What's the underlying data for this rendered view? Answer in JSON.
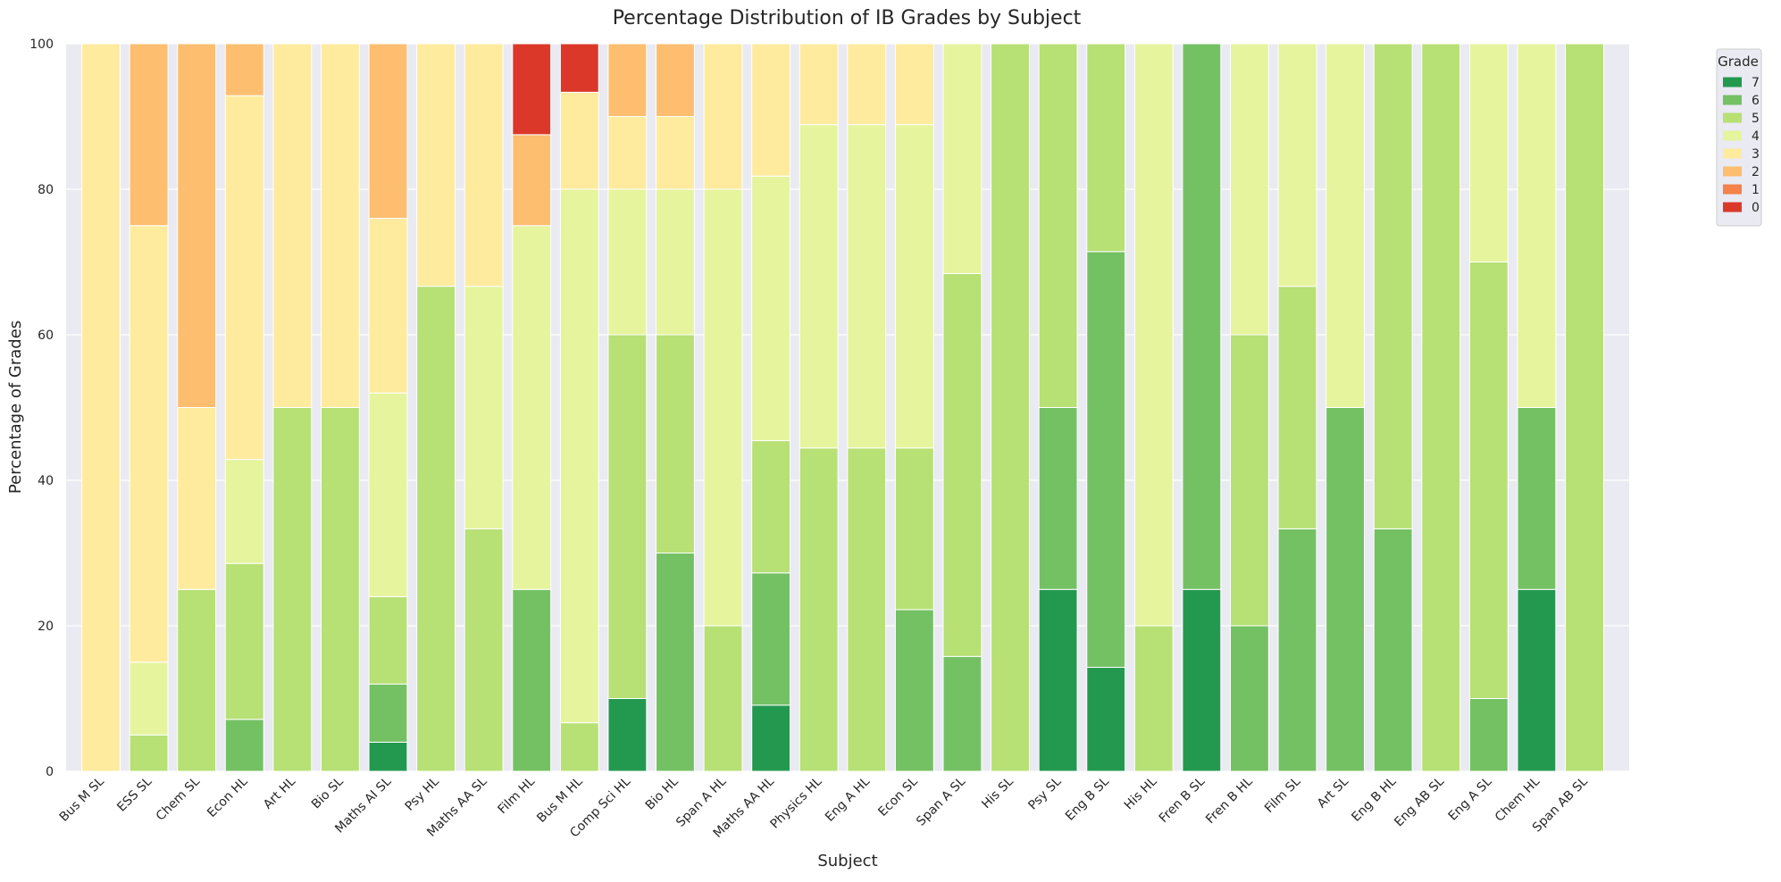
{
  "chart_data": {
    "type": "bar",
    "stacked": true,
    "title": "Percentage Distribution of IB Grades by Subject",
    "xlabel": "Subject",
    "ylabel": "Percentage of Grades",
    "ylim": [
      0,
      100
    ],
    "yticks": [
      0,
      20,
      40,
      60,
      80,
      100
    ],
    "grid": true,
    "legend_title": "Grade",
    "legend_placement": "outside top-right",
    "categories": [
      "Bus M SL",
      "ESS SL",
      "Chem SL",
      "Econ HL",
      "Art HL",
      "Bio SL",
      "Maths AI SL",
      "Psy HL",
      "Maths AA SL",
      "Film HL",
      "Bus M HL",
      "Comp Sci HL",
      "Bio HL",
      "Span A HL",
      "Maths AA HL",
      "Physics HL",
      "Eng A HL",
      "Econ SL",
      "Span A SL",
      "His SL",
      "Psy SL",
      "Eng B SL",
      "His HL",
      "Fren B SL",
      "Fren B HL",
      "Film SL",
      "Art SL",
      "Eng B HL",
      "Eng AB SL",
      "Eng A SL",
      "Chem HL",
      "Span AB SL"
    ],
    "series": [
      {
        "name": "7",
        "color": "#23994f",
        "values": [
          0,
          0,
          0,
          0,
          0,
          0,
          4,
          0,
          0,
          0,
          0,
          10,
          0,
          0,
          9.09,
          0,
          0,
          0,
          0,
          0,
          25,
          14.29,
          0,
          25,
          0,
          0,
          0,
          0,
          0,
          0,
          25,
          0
        ]
      },
      {
        "name": "6",
        "color": "#74c164",
        "values": [
          0,
          0,
          0,
          7.14,
          0,
          0,
          8,
          0,
          0,
          25,
          0,
          0,
          30,
          0,
          18.18,
          0,
          0,
          22.22,
          15.79,
          0,
          25,
          57.14,
          0,
          75,
          20,
          33.33,
          50,
          33.33,
          0,
          10,
          25,
          0
        ]
      },
      {
        "name": "5",
        "color": "#b7e075",
        "values": [
          0,
          5,
          25,
          21.43,
          50,
          50,
          12,
          66.67,
          33.33,
          0,
          6.67,
          50,
          30,
          20,
          18.18,
          44.44,
          44.44,
          22.22,
          52.63,
          100,
          50,
          28.57,
          20,
          0,
          40,
          33.33,
          0,
          66.67,
          100,
          60,
          0,
          100
        ]
      },
      {
        "name": "4",
        "color": "#e6f49d",
        "values": [
          0,
          10,
          0,
          14.29,
          0,
          0,
          28,
          0,
          33.33,
          50,
          73.33,
          20,
          20,
          60,
          36.36,
          44.44,
          44.44,
          44.44,
          31.58,
          0,
          0,
          0,
          80,
          0,
          40,
          33.34,
          50,
          0,
          0,
          30,
          50,
          0
        ]
      },
      {
        "name": "3",
        "color": "#feeb9e",
        "values": [
          100,
          60,
          25,
          50,
          50,
          50,
          24,
          33.33,
          33.34,
          0,
          13.33,
          10,
          10,
          20,
          18.19,
          11.12,
          11.12,
          11.12,
          0,
          0,
          0,
          0,
          0,
          0,
          0,
          0,
          0,
          0,
          0,
          0,
          0,
          0
        ]
      },
      {
        "name": "2",
        "color": "#fdbe70",
        "values": [
          0,
          25,
          50,
          7.14,
          0,
          0,
          24,
          0,
          0,
          12.5,
          0,
          10,
          10,
          0,
          0,
          0,
          0,
          0,
          0,
          0,
          0,
          0,
          0,
          0,
          0,
          0,
          0,
          0,
          0,
          0,
          0,
          0
        ]
      },
      {
        "name": "1",
        "color": "#f4824a",
        "values": [
          0,
          0,
          0,
          0,
          0,
          0,
          0,
          0,
          0,
          0,
          0,
          0,
          0,
          0,
          0,
          0,
          0,
          0,
          0,
          0,
          0,
          0,
          0,
          0,
          0,
          0,
          0,
          0,
          0,
          0,
          0,
          0
        ]
      },
      {
        "name": "0",
        "color": "#db382a",
        "values": [
          0,
          0,
          0,
          0,
          0,
          0,
          0,
          0,
          0,
          12.5,
          6.67,
          0,
          0,
          0,
          0,
          0,
          0,
          0,
          0,
          0,
          0,
          0,
          0,
          0,
          0,
          0,
          0,
          0,
          0,
          0,
          0,
          0
        ]
      }
    ]
  }
}
